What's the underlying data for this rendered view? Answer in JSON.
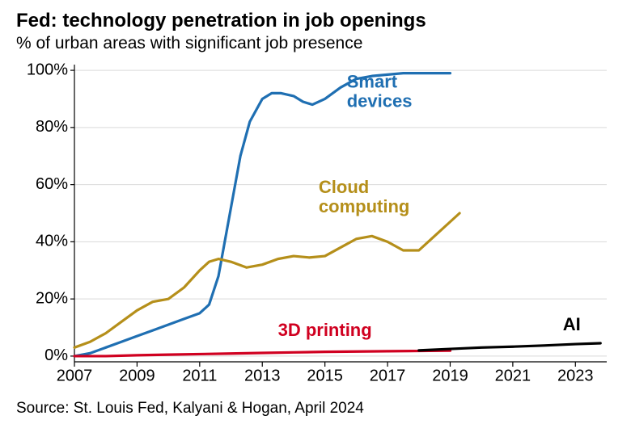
{
  "title": "Fed: technology penetration in job openings",
  "subtitle": "% of urban areas with significant job presence",
  "source": "Source: St. Louis Fed, Kalyani & Hogan, April 2024",
  "chart": {
    "type": "line",
    "background_color": "#ffffff",
    "xlim": [
      2007,
      2024
    ],
    "ylim": [
      -2,
      102
    ],
    "xticks": [
      2007,
      2009,
      2011,
      2013,
      2015,
      2017,
      2019,
      2021,
      2023
    ],
    "yticks": [
      0,
      20,
      40,
      60,
      80,
      100
    ],
    "ytick_suffix": "%",
    "tick_fontsize": 20,
    "grid_color": "#d9d9d9",
    "axis_color": "#000000",
    "grid_linewidth": 1,
    "axis_linewidth": 1.2,
    "label_fontsize": 22,
    "label_fontweight": "bold",
    "line_width": 3.2,
    "series": [
      {
        "name": "Smart devices",
        "color": "#1f6fb2",
        "label_x": 2015.7,
        "label_y": 94,
        "label_lines": [
          "Smart",
          "devices"
        ],
        "points": [
          [
            2007,
            0
          ],
          [
            2007.5,
            1
          ],
          [
            2008,
            3
          ],
          [
            2008.5,
            5
          ],
          [
            2009,
            7
          ],
          [
            2009.5,
            9
          ],
          [
            2010,
            11
          ],
          [
            2010.5,
            13
          ],
          [
            2011,
            15
          ],
          [
            2011.3,
            18
          ],
          [
            2011.6,
            28
          ],
          [
            2012,
            52
          ],
          [
            2012.3,
            70
          ],
          [
            2012.6,
            82
          ],
          [
            2013,
            90
          ],
          [
            2013.3,
            92
          ],
          [
            2013.6,
            92
          ],
          [
            2014,
            91
          ],
          [
            2014.3,
            89
          ],
          [
            2014.6,
            88
          ],
          [
            2015,
            90
          ],
          [
            2015.5,
            94
          ],
          [
            2016,
            97
          ],
          [
            2016.5,
            98
          ],
          [
            2017,
            98.5
          ],
          [
            2017.5,
            99
          ],
          [
            2018,
            99
          ],
          [
            2018.5,
            99
          ],
          [
            2019,
            99
          ]
        ]
      },
      {
        "name": "Cloud computing",
        "color": "#b58f1a",
        "label_x": 2014.8,
        "label_y": 57,
        "label_lines": [
          "Cloud",
          "computing"
        ],
        "points": [
          [
            2007,
            3
          ],
          [
            2007.5,
            5
          ],
          [
            2008,
            8
          ],
          [
            2008.5,
            12
          ],
          [
            2009,
            16
          ],
          [
            2009.5,
            19
          ],
          [
            2010,
            20
          ],
          [
            2010.5,
            24
          ],
          [
            2011,
            30
          ],
          [
            2011.3,
            33
          ],
          [
            2011.6,
            34
          ],
          [
            2012,
            33
          ],
          [
            2012.5,
            31
          ],
          [
            2013,
            32
          ],
          [
            2013.5,
            34
          ],
          [
            2014,
            35
          ],
          [
            2014.5,
            34.5
          ],
          [
            2015,
            35
          ],
          [
            2015.5,
            38
          ],
          [
            2016,
            41
          ],
          [
            2016.5,
            42
          ],
          [
            2017,
            40
          ],
          [
            2017.5,
            37
          ],
          [
            2018,
            37
          ],
          [
            2018.5,
            42
          ],
          [
            2019,
            47
          ],
          [
            2019.3,
            50
          ]
        ]
      },
      {
        "name": "3D printing",
        "color": "#d00020",
        "label_x": 2013.5,
        "label_y": 7,
        "label_lines": [
          "3D printing"
        ],
        "points": [
          [
            2007,
            0
          ],
          [
            2008,
            0
          ],
          [
            2009,
            0.3
          ],
          [
            2010,
            0.5
          ],
          [
            2011,
            0.7
          ],
          [
            2012,
            0.9
          ],
          [
            2013,
            1.1
          ],
          [
            2014,
            1.3
          ],
          [
            2015,
            1.5
          ],
          [
            2016,
            1.6
          ],
          [
            2017,
            1.7
          ],
          [
            2018,
            1.8
          ],
          [
            2019,
            1.9
          ]
        ]
      },
      {
        "name": "AI",
        "color": "#000000",
        "label_x": 2022.6,
        "label_y": 9,
        "label_lines": [
          "AI"
        ],
        "points": [
          [
            2018,
            2
          ],
          [
            2019,
            2.5
          ],
          [
            2020,
            3
          ],
          [
            2021,
            3.3
          ],
          [
            2022,
            3.7
          ],
          [
            2023,
            4.2
          ],
          [
            2023.8,
            4.5
          ]
        ]
      }
    ]
  }
}
